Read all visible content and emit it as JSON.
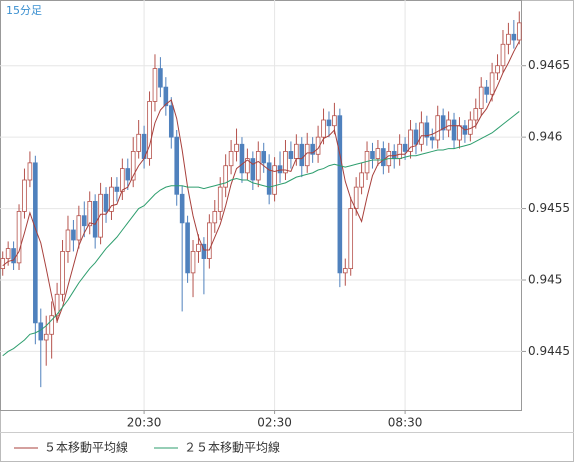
{
  "chart_data": {
    "type": "candlestick",
    "timeframe": "15分足",
    "categories": [
      null,
      null,
      null,
      null,
      null,
      null,
      null,
      null,
      null,
      null,
      null,
      null,
      null,
      null,
      null,
      null,
      null,
      null,
      null,
      null,
      null,
      null,
      null,
      null,
      null,
      null,
      "20:30",
      null,
      null,
      null,
      null,
      null,
      null,
      null,
      null,
      null,
      null,
      null,
      null,
      null,
      null,
      null,
      null,
      null,
      null,
      null,
      null,
      null,
      null,
      null,
      "02:30",
      null,
      null,
      null,
      null,
      null,
      null,
      null,
      null,
      null,
      null,
      null,
      null,
      null,
      null,
      null,
      null,
      null,
      null,
      null,
      null,
      null,
      null,
      null,
      "08:30",
      null,
      null,
      null,
      null,
      null,
      null,
      null,
      null,
      null,
      null,
      null,
      null,
      null,
      null,
      null,
      null,
      null,
      null,
      null,
      null,
      null
    ],
    "open": [
      0.94508,
      0.94515,
      0.94522,
      0.94512,
      0.94548,
      0.9457,
      0.94582,
      0.9447,
      0.94458,
      0.94462,
      0.94475,
      0.9449,
      0.9452,
      0.94535,
      0.94528,
      0.94545,
      0.94538,
      0.94555,
      0.9453,
      0.9456,
      0.94548,
      0.94565,
      0.94562,
      0.94578,
      0.9457,
      0.9459,
      0.94602,
      0.94585,
      0.94625,
      0.94648,
      0.94635,
      0.94622,
      0.946,
      0.9456,
      0.9454,
      0.94505,
      0.9452,
      0.94525,
      0.94515,
      0.9454,
      0.94548,
      0.94565,
      0.9458,
      0.9459,
      0.94595,
      0.94575,
      0.94585,
      0.9457,
      0.9459,
      0.94582,
      0.9456,
      0.9458,
      0.94575,
      0.9459,
      0.94585,
      0.94595,
      0.9458,
      0.94595,
      0.94588,
      0.946,
      0.94612,
      0.94608,
      0.94615,
      0.94505,
      0.94508,
      0.9455,
      0.94565,
      0.94575,
      0.9459,
      0.94585,
      0.94592,
      0.9458,
      0.9459,
      0.94585,
      0.94595,
      0.9459,
      0.94605,
      0.94595,
      0.9461,
      0.946,
      0.94598,
      0.94615,
      0.94605,
      0.94612,
      0.94598,
      0.94608,
      0.94602,
      0.94612,
      0.9462,
      0.94635,
      0.9463,
      0.94645,
      0.9465,
      0.94665,
      0.94672,
      0.94668
    ],
    "high": [
      0.9452,
      0.94527,
      0.94527,
      0.94553,
      0.94578,
      0.9459,
      0.94587,
      0.9448,
      0.94475,
      0.94485,
      0.94498,
      0.94528,
      0.94545,
      0.94542,
      0.94552,
      0.94555,
      0.94562,
      0.9456,
      0.94568,
      0.94565,
      0.94572,
      0.94572,
      0.94585,
      0.94585,
      0.946,
      0.94612,
      0.94608,
      0.94632,
      0.94658,
      0.94656,
      0.94642,
      0.94628,
      0.94605,
      0.94566,
      0.94545,
      0.94528,
      0.94532,
      0.9453,
      0.94546,
      0.94556,
      0.94572,
      0.94588,
      0.94598,
      0.94606,
      0.946,
      0.94592,
      0.9459,
      0.94597,
      0.94596,
      0.94588,
      0.94586,
      0.9459,
      0.94598,
      0.94597,
      0.94602,
      0.946,
      0.94603,
      0.946,
      0.94608,
      0.9462,
      0.94618,
      0.94624,
      0.9462,
      0.94515,
      0.94558,
      0.94572,
      0.94582,
      0.94597,
      0.94596,
      0.94598,
      0.94597,
      0.94596,
      0.94595,
      0.94602,
      0.946,
      0.94612,
      0.9461,
      0.94618,
      0.94615,
      0.94606,
      0.94622,
      0.9462,
      0.94618,
      0.94617,
      0.94614,
      0.94612,
      0.94618,
      0.94627,
      0.94642,
      0.9464,
      0.94652,
      0.94658,
      0.94675,
      0.9468,
      0.94682,
      0.94688
    ],
    "low": [
      0.94503,
      0.9451,
      0.94507,
      0.94507,
      0.94543,
      0.94565,
      0.94455,
      0.94425,
      0.9444,
      0.94445,
      0.9447,
      0.94485,
      0.94512,
      0.9452,
      0.94522,
      0.9453,
      0.94532,
      0.94522,
      0.94525,
      0.9454,
      0.94542,
      0.94555,
      0.94556,
      0.94563,
      0.94565,
      0.94585,
      0.94578,
      0.9458,
      0.94618,
      0.94628,
      0.94615,
      0.94592,
      0.94552,
      0.94478,
      0.94498,
      0.94488,
      0.94512,
      0.9449,
      0.94508,
      0.94533,
      0.94542,
      0.94558,
      0.94574,
      0.94583,
      0.94568,
      0.9457,
      0.94563,
      0.94565,
      0.94575,
      0.94553,
      0.94555,
      0.94568,
      0.9457,
      0.94578,
      0.9458,
      0.94572,
      0.94575,
      0.94582,
      0.94582,
      0.94595,
      0.946,
      0.94602,
      0.94495,
      0.94496,
      0.94503,
      0.94545,
      0.9456,
      0.9457,
      0.94578,
      0.9458,
      0.94574,
      0.94575,
      0.94578,
      0.9458,
      0.94584,
      0.94585,
      0.94588,
      0.9459,
      0.94594,
      0.94592,
      0.94592,
      0.94598,
      0.946,
      0.94592,
      0.94592,
      0.94596,
      0.94597,
      0.94606,
      0.94615,
      0.94624,
      0.94625,
      0.9464,
      0.94645,
      0.94658,
      0.94662,
      0.94665
    ],
    "close": [
      0.94515,
      0.94522,
      0.94512,
      0.94548,
      0.9457,
      0.94582,
      0.9447,
      0.94458,
      0.94462,
      0.94475,
      0.9449,
      0.9452,
      0.94535,
      0.94528,
      0.94545,
      0.94538,
      0.94555,
      0.9453,
      0.9456,
      0.94548,
      0.94565,
      0.94562,
      0.94578,
      0.9457,
      0.9459,
      0.94602,
      0.94585,
      0.94625,
      0.94648,
      0.94635,
      0.94622,
      0.946,
      0.9456,
      0.9454,
      0.94505,
      0.9452,
      0.94525,
      0.94515,
      0.9454,
      0.94548,
      0.94565,
      0.9458,
      0.9459,
      0.94595,
      0.94575,
      0.94585,
      0.9457,
      0.9459,
      0.94582,
      0.9456,
      0.9458,
      0.94575,
      0.9459,
      0.94585,
      0.94595,
      0.9458,
      0.94595,
      0.94588,
      0.946,
      0.94612,
      0.94608,
      0.94615,
      0.94505,
      0.94508,
      0.9455,
      0.94565,
      0.94575,
      0.9459,
      0.94585,
      0.94592,
      0.9458,
      0.9459,
      0.94585,
      0.94595,
      0.9459,
      0.94605,
      0.94595,
      0.9461,
      0.946,
      0.94598,
      0.94615,
      0.94605,
      0.94612,
      0.94598,
      0.94608,
      0.94602,
      0.94612,
      0.9462,
      0.94635,
      0.9463,
      0.94645,
      0.9465,
      0.94665,
      0.94672,
      0.94668,
      0.9468
    ],
    "up_color": "#b5524c",
    "down_color": "#4f81bd",
    "series": [
      {
        "name": "５本移動平均線",
        "color": "#a8403c",
        "values": [
          0.9451,
          0.94513,
          0.94514,
          0.9452,
          0.94533,
          0.94547,
          0.94536,
          0.94526,
          0.94508,
          0.94489,
          0.94471,
          0.94481,
          0.94496,
          0.9451,
          0.94524,
          0.94533,
          0.9454,
          0.94539,
          0.94546,
          0.94546,
          0.94552,
          0.94553,
          0.94563,
          0.94565,
          0.94573,
          0.9458,
          0.94585,
          0.94594,
          0.9461,
          0.94619,
          0.94623,
          0.94626,
          0.94613,
          0.94591,
          0.94565,
          0.94545,
          0.9453,
          0.94521,
          0.94521,
          0.9453,
          0.94539,
          0.94552,
          0.94567,
          0.94578,
          0.94581,
          0.94584,
          0.94581,
          0.94583,
          0.9458,
          0.94577,
          0.94576,
          0.94577,
          0.94577,
          0.94576,
          0.94585,
          0.94585,
          0.94589,
          0.94589,
          0.94592,
          0.94599,
          0.94601,
          0.94605,
          0.94588,
          0.94569,
          0.94557,
          0.94549,
          0.94541,
          0.94558,
          0.94573,
          0.94581,
          0.94584,
          0.94587,
          0.94587,
          0.94588,
          0.94588,
          0.94593,
          0.94594,
          0.94601,
          0.94601,
          0.94602,
          0.94604,
          0.94606,
          0.94608,
          0.94608,
          0.94608,
          0.94605,
          0.94606,
          0.94608,
          0.94615,
          0.9462,
          0.94628,
          0.94636,
          0.94645,
          0.94652,
          0.9466,
          0.94667
        ]
      },
      {
        "name": "２５本移動平均線",
        "color": "#2e9e6e",
        "values": [
          0.94447,
          0.9445,
          0.94452,
          0.94455,
          0.94458,
          0.94462,
          0.94463,
          0.94465,
          0.94468,
          0.94472,
          0.94476,
          0.94481,
          0.94486,
          0.94492,
          0.94498,
          0.94503,
          0.94508,
          0.94512,
          0.94517,
          0.94522,
          0.94526,
          0.9453,
          0.94535,
          0.9454,
          0.94545,
          0.9455,
          0.94552,
          0.94556,
          0.9456,
          0.94563,
          0.94565,
          0.94566,
          0.94566,
          0.94566,
          0.94565,
          0.94565,
          0.94565,
          0.94564,
          0.94565,
          0.94566,
          0.94567,
          0.94568,
          0.9457,
          0.94571,
          0.9457,
          0.9457,
          0.94568,
          0.94567,
          0.94566,
          0.94565,
          0.94566,
          0.94567,
          0.94568,
          0.9457,
          0.94572,
          0.94573,
          0.94574,
          0.94575,
          0.94577,
          0.94578,
          0.9458,
          0.94581,
          0.9458,
          0.94579,
          0.9458,
          0.94581,
          0.94582,
          0.94583,
          0.94584,
          0.94584,
          0.94584,
          0.94585,
          0.94585,
          0.94585,
          0.94586,
          0.94587,
          0.94587,
          0.94588,
          0.94589,
          0.9459,
          0.94591,
          0.94591,
          0.94592,
          0.94592,
          0.94593,
          0.94594,
          0.94595,
          0.94597,
          0.94599,
          0.94601,
          0.94603,
          0.94606,
          0.94609,
          0.94612,
          0.94615,
          0.94618
        ]
      }
    ],
    "ylim": [
      0.94409,
      0.94696
    ],
    "yticks": [
      0.9445,
      0.945,
      0.9455,
      0.946,
      0.9465
    ],
    "grid": true
  }
}
